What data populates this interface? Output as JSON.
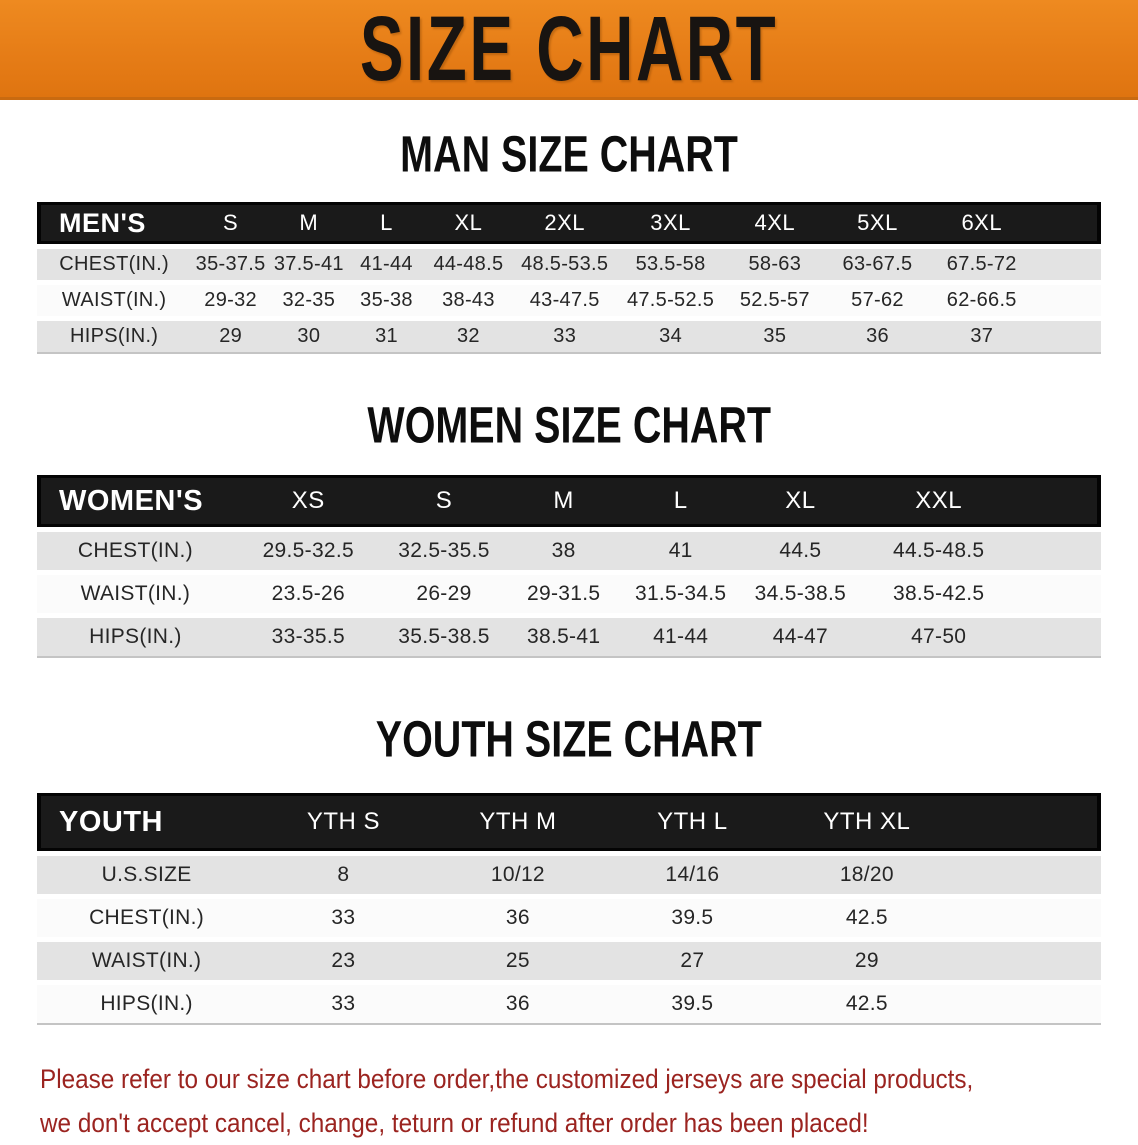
{
  "banner": {
    "title": "SIZE CHART"
  },
  "sections": [
    {
      "heading": "MAN SIZE CHART",
      "table": {
        "header": [
          "MEN'S",
          "S",
          "M",
          "L",
          "XL",
          "2XL",
          "3XL",
          "4XL",
          "5XL",
          "6XL"
        ],
        "rows": [
          {
            "label": "CHEST(IN.)",
            "values": [
              "35-37.5",
              "37.5-41",
              "41-44",
              "44-48.5",
              "48.5-53.5",
              "53.5-58",
              "58-63",
              "63-67.5",
              "67.5-72"
            ]
          },
          {
            "label": "WAIST(IN.)",
            "values": [
              "29-32",
              "32-35",
              "35-38",
              "38-43",
              "43-47.5",
              "47.5-52.5",
              "52.5-57",
              "57-62",
              "62-66.5"
            ]
          },
          {
            "label": "HIPS(IN.)",
            "values": [
              "29",
              "30",
              "31",
              "32",
              "33",
              "34",
              "35",
              "36",
              "37"
            ]
          }
        ]
      }
    },
    {
      "heading": "WOMEN SIZE CHART",
      "table": {
        "header": [
          "WOMEN'S",
          "XS",
          "S",
          "M",
          "L",
          "XL",
          "XXL"
        ],
        "rows": [
          {
            "label": "CHEST(IN.)",
            "values": [
              "29.5-32.5",
              "32.5-35.5",
              "38",
              "41",
              "44.5",
              "44.5-48.5"
            ]
          },
          {
            "label": "WAIST(IN.)",
            "values": [
              "23.5-26",
              "26-29",
              "29-31.5",
              "31.5-34.5",
              "34.5-38.5",
              "38.5-42.5"
            ]
          },
          {
            "label": "HIPS(IN.)",
            "values": [
              "33-35.5",
              "35.5-38.5",
              "38.5-41",
              "41-44",
              "44-47",
              "47-50"
            ]
          }
        ]
      }
    },
    {
      "heading": "YOUTH SIZE CHART",
      "table": {
        "header": [
          "YOUTH",
          "YTH S",
          "YTH M",
          "YTH L",
          "YTH XL"
        ],
        "rows": [
          {
            "label": "U.S.SIZE",
            "values": [
              "8",
              "10/12",
              "14/16",
              "18/20"
            ]
          },
          {
            "label": "CHEST(IN.)",
            "values": [
              "33",
              "36",
              "39.5",
              "42.5"
            ]
          },
          {
            "label": "WAIST(IN.)",
            "values": [
              "23",
              "25",
              "27",
              "29"
            ]
          },
          {
            "label": "HIPS(IN.)",
            "values": [
              "33",
              "36",
              "39.5",
              "42.5"
            ]
          }
        ]
      }
    }
  ],
  "footer": {
    "line1": "Please refer to our size chart before order,the customized jerseys are special products,",
    "line2": "we don't accept cancel, change, teturn or refund after order has been placed!"
  },
  "colors": {
    "banner_orange": "#E67D17",
    "header_black": "#1A1A1A",
    "row_gray": "#E3E3E3",
    "notice_red": "#9B2420"
  },
  "chart_data": [
    {
      "type": "table",
      "title": "MAN SIZE CHART",
      "columns": [
        "MEN'S",
        "S",
        "M",
        "L",
        "XL",
        "2XL",
        "3XL",
        "4XL",
        "5XL",
        "6XL"
      ],
      "rows": [
        [
          "CHEST(IN.)",
          "35-37.5",
          "37.5-41",
          "41-44",
          "44-48.5",
          "48.5-53.5",
          "53.5-58",
          "58-63",
          "63-67.5",
          "67.5-72"
        ],
        [
          "WAIST(IN.)",
          "29-32",
          "32-35",
          "35-38",
          "38-43",
          "43-47.5",
          "47.5-52.5",
          "52.5-57",
          "57-62",
          "62-66.5"
        ],
        [
          "HIPS(IN.)",
          "29",
          "30",
          "31",
          "32",
          "33",
          "34",
          "35",
          "36",
          "37"
        ]
      ]
    },
    {
      "type": "table",
      "title": "WOMEN SIZE CHART",
      "columns": [
        "WOMEN'S",
        "XS",
        "S",
        "M",
        "L",
        "XL",
        "XXL"
      ],
      "rows": [
        [
          "CHEST(IN.)",
          "29.5-32.5",
          "32.5-35.5",
          "38",
          "41",
          "44.5",
          "44.5-48.5"
        ],
        [
          "WAIST(IN.)",
          "23.5-26",
          "26-29",
          "29-31.5",
          "31.5-34.5",
          "34.5-38.5",
          "38.5-42.5"
        ],
        [
          "HIPS(IN.)",
          "33-35.5",
          "35.5-38.5",
          "38.5-41",
          "41-44",
          "44-47",
          "47-50"
        ]
      ]
    },
    {
      "type": "table",
      "title": "YOUTH SIZE CHART",
      "columns": [
        "YOUTH",
        "YTH S",
        "YTH M",
        "YTH L",
        "YTH XL"
      ],
      "rows": [
        [
          "U.S.SIZE",
          "8",
          "10/12",
          "14/16",
          "18/20"
        ],
        [
          "CHEST(IN.)",
          "33",
          "36",
          "39.5",
          "42.5"
        ],
        [
          "WAIST(IN.)",
          "23",
          "25",
          "27",
          "29"
        ],
        [
          "HIPS(IN.)",
          "33",
          "36",
          "39.5",
          "42.5"
        ]
      ]
    }
  ]
}
